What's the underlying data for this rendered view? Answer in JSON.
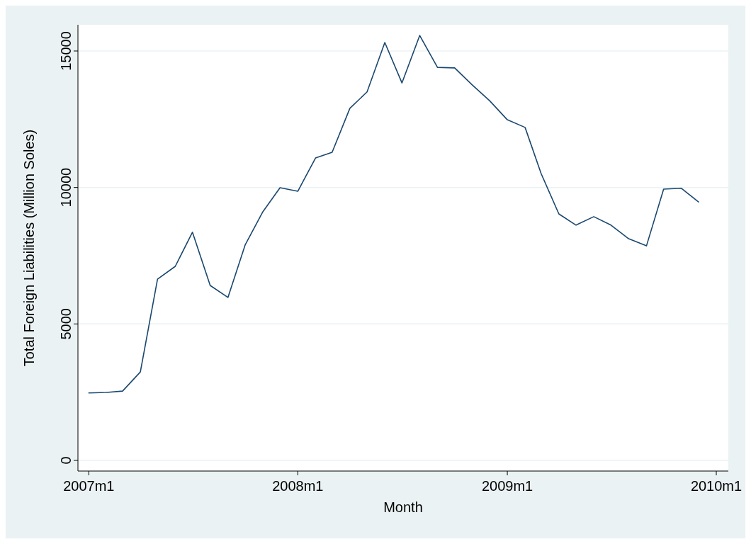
{
  "chart_data": {
    "type": "line",
    "xlabel": "Month",
    "ylabel": "Total Foreign Liabilities (Million Soles)",
    "x": [
      "2007-01",
      "2007-02",
      "2007-03",
      "2007-04",
      "2007-05",
      "2007-06",
      "2007-07",
      "2007-08",
      "2007-09",
      "2007-10",
      "2007-11",
      "2007-12",
      "2008-01",
      "2008-02",
      "2008-03",
      "2008-04",
      "2008-05",
      "2008-06",
      "2008-07",
      "2008-08",
      "2008-09",
      "2008-10",
      "2008-11",
      "2008-12",
      "2009-01",
      "2009-02",
      "2009-03",
      "2009-04",
      "2009-05",
      "2009-06",
      "2009-07",
      "2009-08",
      "2009-09",
      "2009-10",
      "2009-11",
      "2009-12"
    ],
    "series": [
      {
        "color": "#1a476f",
        "values": [
          2470,
          2490,
          2540,
          3240,
          6640,
          7110,
          8360,
          6410,
          5970,
          7890,
          9110,
          9990,
          9860,
          11080,
          11290,
          12900,
          13500,
          15310,
          13830,
          15570,
          14400,
          14380,
          13750,
          13180,
          12480,
          12200,
          10510,
          9030,
          8620,
          8930,
          8620,
          8120,
          7860,
          9940,
          9970,
          9470
        ]
      }
    ],
    "xlim": [
      "2006-12-13",
      "2010-01-22"
    ],
    "xticks": [
      {
        "value": "2007-01",
        "label": "2007m1"
      },
      {
        "value": "2008-01",
        "label": "2008m1"
      },
      {
        "value": "2009-01",
        "label": "2009m1"
      },
      {
        "value": "2010-01",
        "label": "2010m1"
      }
    ],
    "ylim": [
      -390,
      15960
    ],
    "yticks": [
      0,
      5000,
      10000,
      15000
    ],
    "grid": "y",
    "marker": "none",
    "line_style": "solid"
  }
}
